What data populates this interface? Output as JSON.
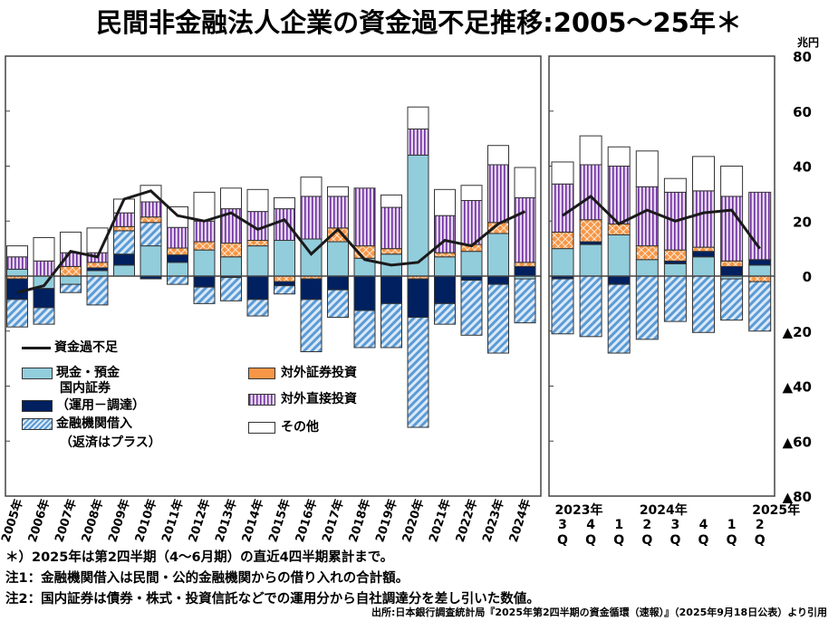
{
  "title": "民間非金融法人企業の資金過不足推移:2005～25年＊",
  "unit": "兆円",
  "notes": [
    "＊）2025年は第2四半期（4～6月期）の直近4四半期累計まで。",
    "注1：金融機関借入は民間・公的金融機関からの借り入れの合計額。",
    "注2：国内証券は債券・株式・投資信託などでの運用分から自社調達分を差し引いた数値。"
  ],
  "source": "出所:日本銀行調査統計局『2025年第2四半期の資金循環（速報）』（2025年9月18日公表）より引用",
  "colors": {
    "cash": "#92cddc",
    "dom": "#002060",
    "port": "#f79646",
    "fdi": "#7030a0",
    "loans": "#5b9bd5",
    "other": "#ffffff",
    "line": "#1a1a1a"
  },
  "chart_data": {
    "type": "bar",
    "stacked": true,
    "ylim": [
      -80,
      80
    ],
    "yticks": [
      80,
      60,
      40,
      20,
      0,
      -20,
      -40,
      -60,
      -80
    ],
    "ytick_labels": [
      "80",
      "60",
      "40",
      "20",
      "0",
      "▲20",
      "▲40",
      "▲60",
      "▲80"
    ],
    "legend": {
      "line": "資金過不足",
      "cash": "現金・預金",
      "dom": "国内証券",
      "dom2": "（運用－調達）",
      "loans": "金融機関借入",
      "loans2": "（返済はプラス）",
      "port": "対外証券投資",
      "fdi": "対外直接投資",
      "other": "その他"
    },
    "annual": {
      "categories": [
        "2005年",
        "2006年",
        "2007年",
        "2008年",
        "2009年",
        "2010年",
        "2011年",
        "2012年",
        "2013年",
        "2014年",
        "2015年",
        "2016年",
        "2017年",
        "2018年",
        "2019年",
        "2020年",
        "2021年",
        "2022年",
        "2023年",
        "2024年"
      ],
      "series": {
        "cash": [
          2.5,
          -4.5,
          -3,
          2,
          4,
          11,
          5,
          9.5,
          7,
          11,
          13,
          13.5,
          12.5,
          6.5,
          8,
          44,
          7,
          9,
          15.5,
          -1
        ],
        "dom": [
          -7.5,
          -7,
          0,
          1,
          4,
          -1,
          2.7,
          -4,
          -0.5,
          -8.5,
          -1.5,
          -7.5,
          -5,
          -12.5,
          -10,
          -14,
          -10,
          -1.5,
          -3,
          3.5
        ],
        "port": [
          -1,
          0,
          3.5,
          2,
          1.5,
          2,
          2.5,
          3,
          5,
          2,
          -2,
          -1,
          5,
          4.5,
          2,
          -1,
          1.5,
          2.5,
          4,
          1.5
        ],
        "fdi": [
          4.5,
          5.5,
          5,
          3.5,
          5,
          5.5,
          7.5,
          7.5,
          12.5,
          10.5,
          11.5,
          15.5,
          11.5,
          21,
          15,
          9.5,
          13.5,
          16,
          21,
          23.5
        ],
        "loans": [
          -10,
          -6,
          -3,
          -10.5,
          8.5,
          8.5,
          -3,
          -6,
          -8.5,
          -6,
          -3,
          -19,
          -10,
          -13.5,
          -16,
          -40,
          -7.5,
          -20,
          -25,
          -16
        ],
        "other": [
          4,
          8.5,
          7.5,
          9,
          5,
          6,
          7.5,
          10.5,
          7.5,
          8,
          4,
          7,
          3.5,
          0,
          4.5,
          8,
          9.5,
          5.5,
          7,
          11
        ]
      },
      "line": [
        -6,
        -3.5,
        9,
        7,
        28,
        31,
        22,
        20,
        23,
        17,
        20.5,
        8,
        17,
        6,
        4,
        5,
        13,
        11,
        19,
        23.5
      ]
    },
    "quarterly": {
      "categories": [
        [
          "2023年",
          "3",
          "Q"
        ],
        [
          "",
          "4",
          "Q"
        ],
        [
          "",
          "1",
          "Q"
        ],
        [
          "2024年",
          "2",
          "Q"
        ],
        [
          "",
          "3",
          "Q"
        ],
        [
          "",
          "4",
          "Q"
        ],
        [
          "",
          "1",
          "Q"
        ],
        [
          "2025年",
          "2",
          "Q"
        ]
      ],
      "series": {
        "cash": [
          10,
          11.5,
          15,
          6,
          4.5,
          7,
          -1,
          4
        ],
        "dom": [
          -1,
          1,
          -3,
          0,
          1,
          2,
          3.5,
          2
        ],
        "port": [
          6,
          8,
          4,
          5,
          4,
          1.5,
          2,
          -2
        ],
        "fdi": [
          17.5,
          20,
          21,
          21.5,
          21,
          20.5,
          23.5,
          24.5
        ],
        "loans": [
          -20,
          -22,
          -25,
          -23,
          -16.5,
          -20.5,
          -15,
          -18
        ],
        "other": [
          8,
          10.5,
          7,
          13,
          5,
          12.5,
          11,
          0
        ]
      },
      "line": [
        22,
        29,
        19,
        24,
        20,
        23,
        24,
        10
      ]
    }
  }
}
